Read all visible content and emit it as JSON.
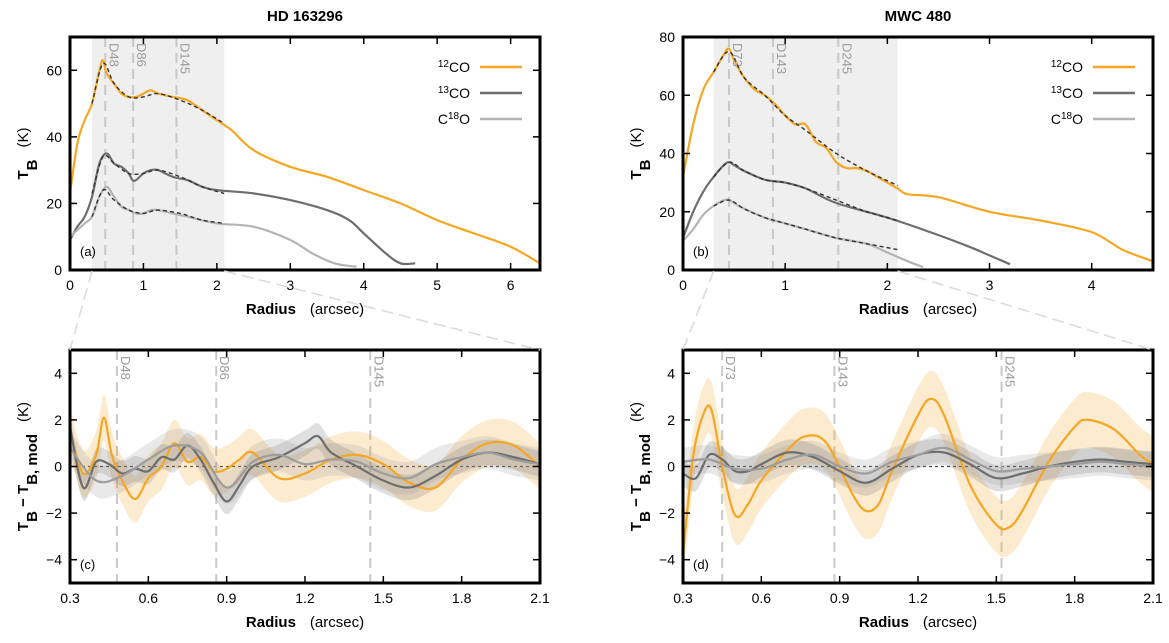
{
  "chart_data": [
    {
      "id": "a",
      "type": "line",
      "title": "HD 163296",
      "panel_label": "(a)",
      "xlabel": "Radius",
      "xunit": "(arcsec)",
      "ylabel_main": "T",
      "ylabel_sub": "B",
      "yunit": "(K)",
      "xlim": [
        0,
        6.4
      ],
      "ylim": [
        0,
        70
      ],
      "xticks": [
        "0",
        "1",
        "2",
        "3",
        "4",
        "5",
        "6"
      ],
      "yticks": [
        "0",
        "20",
        "40",
        "60"
      ],
      "shaded_region": [
        0.3,
        2.1
      ],
      "gap_markers": [
        {
          "label": "D48",
          "x": 0.48
        },
        {
          "label": "D86",
          "x": 0.86
        },
        {
          "label": "D145",
          "x": 1.45
        }
      ],
      "legend": [
        "12CO",
        "13CO",
        "C18O"
      ],
      "legend_position": "top-right",
      "series": [
        {
          "name": "12CO",
          "color": "#f5a623",
          "x": [
            0,
            0.1,
            0.2,
            0.3,
            0.4,
            0.45,
            0.5,
            0.6,
            0.7,
            0.8,
            0.9,
            1.0,
            1.1,
            1.2,
            1.4,
            1.6,
            1.8,
            2.0,
            2.2,
            2.5,
            3.0,
            3.5,
            4.0,
            4.5,
            5.0,
            5.5,
            6.0,
            6.4
          ],
          "y": [
            23,
            38,
            45,
            50,
            60,
            63,
            59,
            56,
            53,
            52,
            52,
            53,
            54,
            53,
            52,
            51,
            48,
            45,
            42,
            36,
            31,
            28,
            24,
            20,
            15,
            11,
            7,
            2
          ]
        },
        {
          "name": "13CO",
          "color": "#6e6e6e",
          "x": [
            0,
            0.1,
            0.2,
            0.3,
            0.4,
            0.5,
            0.6,
            0.7,
            0.8,
            0.85,
            0.9,
            1.0,
            1.1,
            1.2,
            1.4,
            1.6,
            1.8,
            2.0,
            2.5,
            3.0,
            3.5,
            3.8,
            4.0,
            4.3,
            4.5,
            4.7
          ],
          "y": [
            9,
            13,
            16,
            22,
            32,
            35,
            32,
            31,
            29,
            27,
            27,
            29,
            30,
            30,
            28,
            27,
            25,
            24,
            23,
            21,
            18,
            15,
            11,
            5,
            2,
            2
          ]
        },
        {
          "name": "C18O",
          "color": "#b4b4b4",
          "x": [
            0,
            0.1,
            0.2,
            0.3,
            0.4,
            0.5,
            0.6,
            0.7,
            0.8,
            0.9,
            1.0,
            1.1,
            1.2,
            1.4,
            1.6,
            2.0,
            2.5,
            3.0,
            3.3,
            3.6,
            3.9
          ],
          "y": [
            10,
            12,
            14,
            16,
            22,
            25,
            22,
            19,
            18,
            17,
            17,
            18,
            18,
            17,
            16,
            14,
            13,
            9,
            5,
            2,
            1
          ]
        }
      ],
      "model_series": [
        {
          "x": [
            0.3,
            0.45,
            0.6,
            0.8,
            1.0,
            1.2,
            1.5,
            1.8,
            2.1
          ],
          "y": [
            50,
            62,
            56,
            52,
            52,
            53,
            51,
            48,
            44
          ]
        },
        {
          "x": [
            0.3,
            0.45,
            0.6,
            0.8,
            1.0,
            1.2,
            1.5,
            1.8,
            2.1
          ],
          "y": [
            23,
            34,
            32,
            29,
            29,
            30,
            28,
            25,
            23
          ]
        },
        {
          "x": [
            0.3,
            0.45,
            0.6,
            0.8,
            1.0,
            1.2,
            1.5,
            1.8,
            2.1
          ],
          "y": [
            16,
            24,
            21,
            18,
            17,
            18,
            17,
            15,
            14
          ]
        }
      ]
    },
    {
      "id": "b",
      "type": "line",
      "title": "MWC 480",
      "panel_label": "(b)",
      "xlabel": "Radius",
      "xunit": "(arcsec)",
      "ylabel_main": "T",
      "ylabel_sub": "B",
      "yunit": "(K)",
      "xlim": [
        0,
        4.6
      ],
      "ylim": [
        0,
        80
      ],
      "xticks": [
        "0",
        "1",
        "2",
        "3",
        "4"
      ],
      "yticks": [
        "0",
        "20",
        "40",
        "60",
        "80"
      ],
      "shaded_region": [
        0.3,
        2.1
      ],
      "gap_markers": [
        {
          "label": "D73",
          "x": 0.45
        },
        {
          "label": "D143",
          "x": 0.88
        },
        {
          "label": "D245",
          "x": 1.52
        }
      ],
      "legend": [
        "12CO",
        "13CO",
        "C18O"
      ],
      "legend_position": "top-right",
      "series": [
        {
          "name": "12CO",
          "color": "#f5a623",
          "x": [
            0,
            0.1,
            0.2,
            0.3,
            0.4,
            0.45,
            0.5,
            0.6,
            0.7,
            0.8,
            0.9,
            1.0,
            1.1,
            1.2,
            1.3,
            1.4,
            1.5,
            1.6,
            1.7,
            1.8,
            1.9,
            2.0,
            2.1,
            2.2,
            2.5,
            3.0,
            3.5,
            4.0,
            4.3,
            4.6
          ],
          "y": [
            32,
            50,
            62,
            68,
            74,
            76,
            72,
            66,
            62,
            60,
            57,
            53,
            50,
            50,
            44,
            42,
            37,
            35,
            35,
            34,
            32,
            30,
            28,
            26,
            25,
            20,
            17,
            13,
            7,
            3
          ]
        },
        {
          "name": "13CO",
          "color": "#6e6e6e",
          "x": [
            0,
            0.1,
            0.2,
            0.3,
            0.4,
            0.45,
            0.5,
            0.6,
            0.8,
            1.0,
            1.2,
            1.5,
            2.0,
            2.5,
            2.8,
            3.0,
            3.2
          ],
          "y": [
            11,
            20,
            27,
            32,
            36,
            37,
            36,
            34,
            31,
            30,
            28,
            23,
            18,
            12,
            8,
            5,
            2
          ]
        },
        {
          "name": "C18O",
          "color": "#b4b4b4",
          "x": [
            0,
            0.1,
            0.2,
            0.3,
            0.4,
            0.45,
            0.5,
            0.6,
            0.8,
            1.0,
            1.2,
            1.5,
            1.8,
            2.0,
            2.2,
            2.35
          ],
          "y": [
            10,
            14,
            19,
            22,
            24,
            24,
            23,
            21,
            18,
            16,
            14,
            11,
            9,
            6,
            3,
            1
          ]
        }
      ],
      "model_series": [
        {
          "x": [
            0.3,
            0.45,
            0.6,
            0.8,
            1.0,
            1.2,
            1.5,
            1.8,
            2.1
          ],
          "y": [
            68,
            75,
            66,
            60,
            53,
            48,
            40,
            34,
            29
          ]
        },
        {
          "x": [
            0.3,
            0.45,
            0.6,
            0.8,
            1.0,
            1.2,
            1.5,
            1.8,
            2.1
          ],
          "y": [
            32,
            37,
            34,
            31,
            30,
            28,
            24,
            20,
            17
          ]
        },
        {
          "x": [
            0.3,
            0.45,
            0.6,
            0.8,
            1.0,
            1.2,
            1.5,
            1.8,
            2.1
          ],
          "y": [
            22,
            24,
            21,
            18,
            16,
            14,
            11,
            9,
            7
          ]
        }
      ]
    },
    {
      "id": "c",
      "type": "line",
      "panel_label": "(c)",
      "xlabel": "Radius",
      "xunit": "(arcsec)",
      "ylabel_main": "T",
      "ylabel_sub": "B",
      "ylabel_mid": " − T",
      "ylabel_sub2": "B, mod",
      "yunit": "(K)",
      "xlim": [
        0.3,
        2.1
      ],
      "ylim": [
        -5,
        5
      ],
      "xticks": [
        "0.3",
        "0.6",
        "0.9",
        "1.2",
        "1.5",
        "1.8",
        "2.1"
      ],
      "yticks": [
        "−4",
        "−2",
        "0",
        "2",
        "4"
      ],
      "gap_markers": [
        {
          "label": "D48",
          "x": 0.48
        },
        {
          "label": "D86",
          "x": 0.86
        },
        {
          "label": "D145",
          "x": 1.45
        }
      ],
      "series": [
        {
          "name": "12CO",
          "color": "#f5a623",
          "band": 1.0,
          "x": [
            0.3,
            0.35,
            0.4,
            0.43,
            0.46,
            0.5,
            0.55,
            0.6,
            0.65,
            0.7,
            0.75,
            0.8,
            0.85,
            0.9,
            0.95,
            1.0,
            1.1,
            1.2,
            1.3,
            1.4,
            1.5,
            1.6,
            1.7,
            1.8,
            1.9,
            2.0,
            2.1
          ],
          "y": [
            1.5,
            -0.3,
            0.5,
            2.1,
            0.5,
            -0.6,
            -1.4,
            -0.5,
            0.0,
            1.0,
            0.2,
            0.4,
            -0.2,
            -0.1,
            0.3,
            0.6,
            -0.5,
            -0.3,
            0.3,
            0.5,
            0.1,
            -0.7,
            -0.9,
            0.3,
            1.0,
            0.9,
            0.0
          ]
        },
        {
          "name": "13CO",
          "color": "#6e6e6e",
          "band": 0.55,
          "x": [
            0.3,
            0.35,
            0.4,
            0.45,
            0.5,
            0.55,
            0.6,
            0.65,
            0.7,
            0.75,
            0.8,
            0.85,
            0.9,
            0.95,
            1.0,
            1.1,
            1.2,
            1.25,
            1.3,
            1.4,
            1.5,
            1.6,
            1.7,
            1.8,
            1.9,
            2.0,
            2.1
          ],
          "y": [
            1.7,
            -0.9,
            0.2,
            0.1,
            -0.3,
            -0.1,
            -0.2,
            0.4,
            0.3,
            0.9,
            0.3,
            -0.7,
            -1.5,
            -0.8,
            0.0,
            0.4,
            1.0,
            1.3,
            0.6,
            0.0,
            -0.6,
            -0.9,
            -0.4,
            0.3,
            0.6,
            0.4,
            0.1
          ]
        },
        {
          "name": "C18O",
          "color": "#9d9d9d",
          "band": 0.7,
          "x": [
            0.3,
            0.4,
            0.5,
            0.6,
            0.7,
            0.8,
            0.9,
            1.0,
            1.1,
            1.2,
            1.3,
            1.4,
            1.5,
            1.6,
            1.7,
            1.8,
            1.9,
            2.0,
            2.1
          ],
          "y": [
            0.8,
            -0.6,
            -0.4,
            0.3,
            0.9,
            0.6,
            -0.9,
            0.2,
            0.5,
            0.1,
            0.3,
            0.2,
            -0.3,
            -0.5,
            0.1,
            0.4,
            0.6,
            0.3,
            0.1
          ]
        }
      ]
    },
    {
      "id": "d",
      "type": "line",
      "panel_label": "(d)",
      "xlabel": "Radius",
      "xunit": "(arcsec)",
      "ylabel_main": "T",
      "ylabel_sub": "B",
      "ylabel_mid": " − T",
      "ylabel_sub2": "B, mod",
      "yunit": "(K)",
      "xlim": [
        0.3,
        2.1
      ],
      "ylim": [
        -5,
        5
      ],
      "xticks": [
        "0.3",
        "0.6",
        "0.9",
        "1.2",
        "1.5",
        "1.8",
        "2.1"
      ],
      "yticks": [
        "−4",
        "−2",
        "0",
        "2",
        "4"
      ],
      "gap_markers": [
        {
          "label": "D73",
          "x": 0.45
        },
        {
          "label": "D143",
          "x": 0.88
        },
        {
          "label": "D245",
          "x": 1.52
        }
      ],
      "series": [
        {
          "name": "12CO",
          "color": "#f5a623",
          "band": 1.2,
          "x": [
            0.3,
            0.34,
            0.38,
            0.41,
            0.45,
            0.5,
            0.55,
            0.6,
            0.7,
            0.77,
            0.85,
            0.95,
            1.0,
            1.05,
            1.1,
            1.2,
            1.25,
            1.3,
            1.4,
            1.5,
            1.55,
            1.6,
            1.7,
            1.8,
            1.85,
            1.95,
            2.05,
            2.1
          ],
          "y": [
            -3.8,
            0.5,
            2.3,
            2.4,
            0.0,
            -2.1,
            -1.6,
            -0.6,
            0.7,
            1.3,
            1.0,
            -1.2,
            -1.9,
            -1.6,
            -0.2,
            2.2,
            2.9,
            2.2,
            -0.8,
            -2.5,
            -2.6,
            -1.9,
            0.2,
            1.7,
            2.0,
            1.6,
            0.5,
            0.1
          ]
        },
        {
          "name": "13CO",
          "color": "#6e6e6e",
          "band": 0.55,
          "x": [
            0.3,
            0.35,
            0.4,
            0.45,
            0.5,
            0.55,
            0.6,
            0.7,
            0.8,
            0.9,
            1.0,
            1.1,
            1.2,
            1.3,
            1.4,
            1.5,
            1.6,
            1.7,
            1.8,
            1.9,
            2.0,
            2.1
          ],
          "y": [
            -0.3,
            -0.5,
            0.5,
            0.3,
            -0.2,
            -0.2,
            0.1,
            0.6,
            0.4,
            -0.2,
            -0.7,
            -0.1,
            0.5,
            0.6,
            0.1,
            -0.5,
            -0.3,
            0.0,
            0.2,
            0.3,
            0.2,
            0.1
          ]
        },
        {
          "name": "C18O",
          "color": "#9d9d9d",
          "band": 0.6,
          "x": [
            0.3,
            0.4,
            0.5,
            0.6,
            0.7,
            0.8,
            0.9,
            1.0,
            1.1,
            1.2,
            1.3,
            1.4,
            1.5,
            1.6,
            1.7,
            1.8,
            1.9,
            2.0,
            2.1
          ],
          "y": [
            0.2,
            0.3,
            -0.1,
            -0.1,
            0.3,
            0.5,
            0.0,
            -0.3,
            0.2,
            0.5,
            0.8,
            0.3,
            -0.2,
            -0.1,
            0.0,
            0.1,
            0.2,
            0.1,
            0.0
          ]
        }
      ]
    }
  ]
}
